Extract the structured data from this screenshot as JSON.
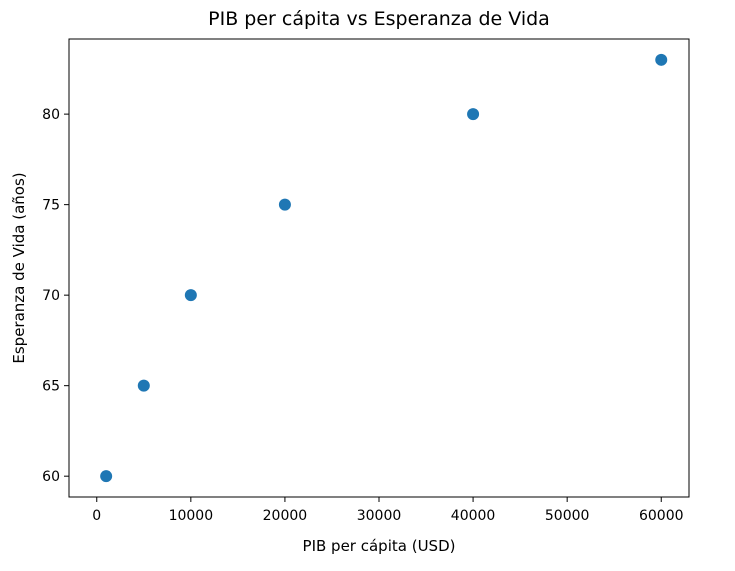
{
  "chart_data": {
    "type": "scatter",
    "title": "PIB per cápita vs Esperanza de Vida",
    "xlabel": "PIB per cápita (USD)",
    "ylabel": "Esperanza de Vida (años)",
    "xlim": [
      -2950,
      62950
    ],
    "ylim": [
      58.85,
      84.15
    ],
    "xticks": [
      0,
      10000,
      20000,
      30000,
      40000,
      50000,
      60000
    ],
    "yticks": [
      60,
      65,
      70,
      75,
      80
    ],
    "grid": false,
    "legend": "none",
    "marker_color": "#1f77b4",
    "series": [
      {
        "x": [
          1000,
          5000,
          10000,
          20000,
          40000,
          60000
        ],
        "y": [
          60,
          65,
          70,
          75,
          80,
          83
        ]
      }
    ]
  }
}
